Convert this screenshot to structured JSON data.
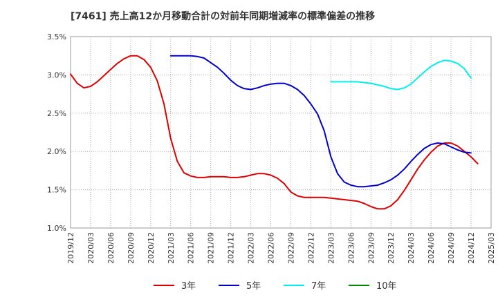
{
  "chart_data": {
    "type": "line",
    "title": "[7461]  売上高12か月移動合計の対前年同期増減率の標準偏差の推移",
    "xlabel": "",
    "ylabel": "",
    "ylim": [
      1.0,
      3.5
    ],
    "y_ticks": [
      "1.0%",
      "1.5%",
      "2.0%",
      "2.5%",
      "3.0%",
      "3.5%"
    ],
    "y_tick_values": [
      1.0,
      1.5,
      2.0,
      2.5,
      3.0,
      3.5
    ],
    "x_ticks": [
      "2019/12",
      "2020/03",
      "2020/06",
      "2020/09",
      "2020/12",
      "2021/03",
      "2021/06",
      "2021/09",
      "2021/12",
      "2022/03",
      "2022/06",
      "2022/09",
      "2022/12",
      "2023/03",
      "2023/06",
      "2023/09",
      "2023/12",
      "2024/03",
      "2024/06",
      "2024/09",
      "2024/12",
      "2025/03"
    ],
    "x_months": [
      "2019/12",
      "2020/01",
      "2020/02",
      "2020/03",
      "2020/04",
      "2020/05",
      "2020/06",
      "2020/07",
      "2020/08",
      "2020/09",
      "2020/10",
      "2020/11",
      "2020/12",
      "2021/01",
      "2021/02",
      "2021/03",
      "2021/04",
      "2021/05",
      "2021/06",
      "2021/07",
      "2021/08",
      "2021/09",
      "2021/10",
      "2021/11",
      "2021/12",
      "2022/01",
      "2022/02",
      "2022/03",
      "2022/04",
      "2022/05",
      "2022/06",
      "2022/07",
      "2022/08",
      "2022/09",
      "2022/10",
      "2022/11",
      "2022/12",
      "2023/01",
      "2023/02",
      "2023/03",
      "2023/04",
      "2023/05",
      "2023/06",
      "2023/07",
      "2023/08",
      "2023/09",
      "2023/10",
      "2023/11",
      "2023/12",
      "2024/01",
      "2024/02",
      "2024/03",
      "2024/04",
      "2024/05",
      "2024/06",
      "2024/07",
      "2024/08",
      "2024/09",
      "2024/10",
      "2024/11",
      "2024/12",
      "2025/01",
      "2025/02",
      "2025/03"
    ],
    "grid": true,
    "legend_position": "bottom",
    "series": [
      {
        "name": "3年",
        "color": "#dd0000",
        "start_index": 0,
        "values": [
          3.01,
          2.89,
          2.83,
          2.85,
          2.91,
          2.99,
          3.07,
          3.15,
          3.21,
          3.25,
          3.25,
          3.2,
          3.1,
          2.92,
          2.62,
          2.17,
          1.87,
          1.72,
          1.68,
          1.66,
          1.66,
          1.67,
          1.67,
          1.67,
          1.66,
          1.66,
          1.67,
          1.69,
          1.71,
          1.71,
          1.69,
          1.65,
          1.58,
          1.47,
          1.42,
          1.4,
          1.4,
          1.4,
          1.4,
          1.39,
          1.38,
          1.37,
          1.36,
          1.35,
          1.32,
          1.28,
          1.25,
          1.25,
          1.29,
          1.37,
          1.49,
          1.63,
          1.77,
          1.89,
          1.99,
          2.07,
          2.11,
          2.11,
          2.07,
          2.0,
          1.93,
          1.84
        ]
      },
      {
        "name": "5年",
        "color": "#0000cc",
        "start_index": 15,
        "values": [
          3.25,
          3.25,
          3.25,
          3.25,
          3.24,
          3.22,
          3.16,
          3.1,
          3.02,
          2.93,
          2.86,
          2.82,
          2.81,
          2.83,
          2.86,
          2.88,
          2.89,
          2.89,
          2.86,
          2.81,
          2.73,
          2.62,
          2.49,
          2.27,
          1.93,
          1.71,
          1.6,
          1.56,
          1.54,
          1.54,
          1.55,
          1.56,
          1.59,
          1.63,
          1.69,
          1.77,
          1.87,
          1.96,
          2.04,
          2.09,
          2.11,
          2.1,
          2.06,
          2.02,
          1.99,
          1.98
        ]
      },
      {
        "name": "7年",
        "color": "#00eeee",
        "start_index": 39,
        "values": [
          2.91,
          2.91,
          2.91,
          2.91,
          2.91,
          2.9,
          2.89,
          2.87,
          2.85,
          2.82,
          2.81,
          2.83,
          2.88,
          2.96,
          3.04,
          3.11,
          3.16,
          3.19,
          3.18,
          3.15,
          3.08,
          2.96
        ]
      },
      {
        "name": "10年",
        "color": "#008800",
        "start_index": 0,
        "values": []
      }
    ]
  }
}
